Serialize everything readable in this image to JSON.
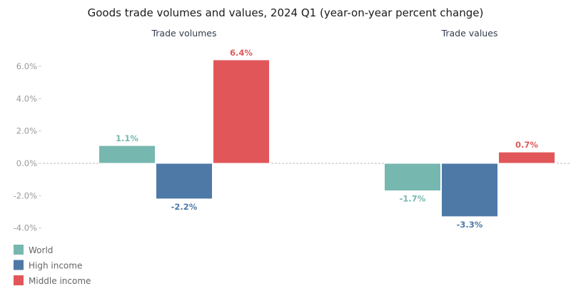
{
  "chart_data": {
    "type": "bar",
    "title": "Goods trade volumes and values, 2024 Q1 (year-on-year percent change)",
    "panels": [
      "Trade volumes",
      "Trade values"
    ],
    "series": [
      {
        "name": "World",
        "color": "#76b7b0",
        "values": [
          1.1,
          -1.7
        ],
        "labels": [
          "1.1%",
          "-1.7%"
        ]
      },
      {
        "name": "High income",
        "color": "#4e79a7",
        "values": [
          -2.2,
          -3.3
        ],
        "labels": [
          "-2.2%",
          "-3.3%"
        ]
      },
      {
        "name": "Middle income",
        "color": "#e15759",
        "values": [
          6.4,
          0.7
        ],
        "labels": [
          "6.4%",
          "0.7%"
        ]
      }
    ],
    "yticks": [
      6,
      4,
      2,
      0,
      -2,
      -4
    ],
    "ytick_labels": [
      "6.0%",
      "4.0%",
      "2.0%",
      "0.0%",
      "-2.0%",
      "-4.0%"
    ],
    "ylim": [
      -4,
      6.4
    ],
    "legend": "bottom-left"
  }
}
